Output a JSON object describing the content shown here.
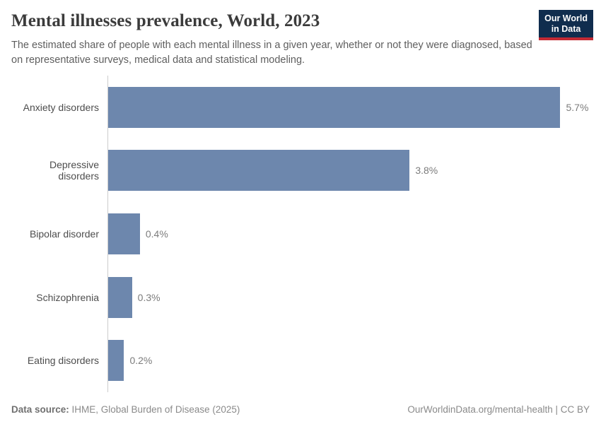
{
  "header": {
    "title": "Mental illnesses prevalence, World, 2023",
    "subtitle": "The estimated share of people with each mental illness in a given year, whether or not they were diagnosed, based on representative surveys, medical data and statistical modeling.",
    "logo": {
      "line1": "Our World",
      "line2": "in Data"
    }
  },
  "chart_data": {
    "type": "bar",
    "orientation": "horizontal",
    "title": "Mental illnesses prevalence, World, 2023",
    "categories": [
      "Anxiety disorders",
      "Depressive disorders",
      "Bipolar disorder",
      "Schizophrenia",
      "Eating disorders"
    ],
    "values": [
      5.7,
      3.8,
      0.4,
      0.3,
      0.2
    ],
    "value_labels": [
      "5.7%",
      "3.8%",
      "0.4%",
      "0.3%",
      "0.2%"
    ],
    "unit": "%",
    "xlabel": "",
    "ylabel": "",
    "xlim": [
      0,
      6.07
    ],
    "grid": false,
    "legend": false,
    "bar_color": "#6d87ad"
  },
  "colors": {
    "bar": "#6d87ad",
    "axis_line": "#cccccc",
    "logo_navy": "#102d4e",
    "logo_red": "#c32a34"
  },
  "footer": {
    "datasource_label": "Data source:",
    "datasource_value": " IHME, Global Burden of Disease (2025)",
    "link": "OurWorldinData.org/mental-health | CC BY"
  }
}
